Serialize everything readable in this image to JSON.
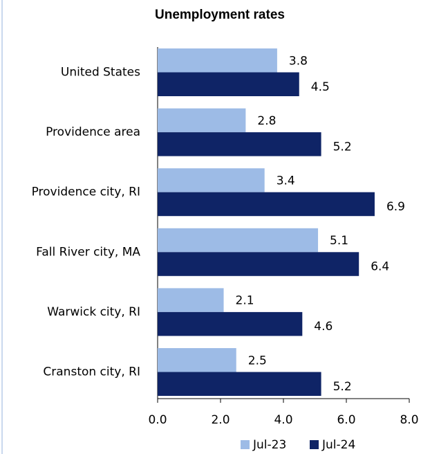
{
  "chart_data": {
    "type": "bar",
    "orientation": "horizontal",
    "title": "Unemployment rates",
    "categories": [
      "United States",
      "Providence area",
      "Providence city, RI",
      "Fall River city, MA",
      "Warwick city, RI",
      "Cranston city, RI"
    ],
    "series": [
      {
        "name": "Jul-23",
        "color": "#9dbbe6",
        "values": [
          3.8,
          2.8,
          3.4,
          5.1,
          2.1,
          2.5
        ]
      },
      {
        "name": "Jul-24",
        "color": "#0f2466",
        "values": [
          4.5,
          5.2,
          6.9,
          6.4,
          4.6,
          5.2
        ]
      }
    ],
    "xlim": [
      0,
      8
    ],
    "xticks": [
      {
        "value": 0,
        "label": "0.0"
      },
      {
        "value": 2,
        "label": "2.0"
      },
      {
        "value": 4,
        "label": "4.0"
      },
      {
        "value": 6,
        "label": "6.0"
      },
      {
        "value": 8,
        "label": "8.0"
      }
    ],
    "legend": "bottom"
  }
}
